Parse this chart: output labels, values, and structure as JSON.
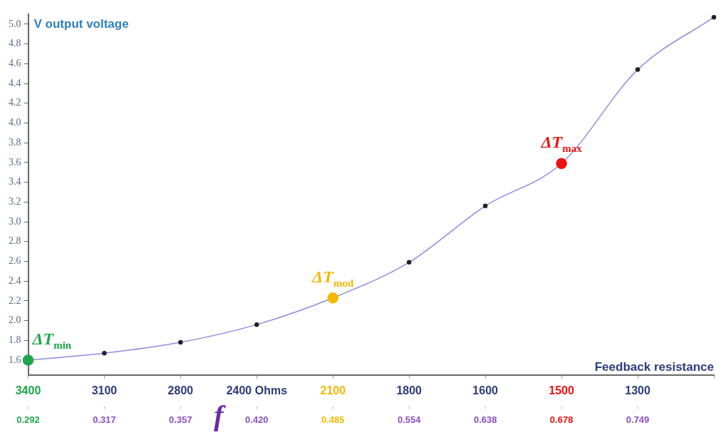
{
  "chart_data": {
    "type": "line",
    "xlabel": "Feedback resistance",
    "ylabel": "V output voltage",
    "categories": [
      "3400",
      "3100",
      "2800",
      "2400 Ohms",
      "2100",
      "1800",
      "1600",
      "1500",
      "1300",
      null
    ],
    "ylim": [
      1.45,
      5.1
    ],
    "yticks": [
      {
        "value": 1.6,
        "label": "1.6"
      },
      {
        "value": 1.8,
        "label": "1.8"
      },
      {
        "value": 2.0,
        "label": "2.0"
      },
      {
        "value": 2.2,
        "label": "2.2"
      },
      {
        "value": 2.4,
        "label": "2.4"
      },
      {
        "value": 2.6,
        "label": "2.6"
      },
      {
        "value": 2.8,
        "label": "2.8"
      },
      {
        "value": 3.0,
        "label": "3.0"
      },
      {
        "value": 3.2,
        "label": "3.2"
      },
      {
        "value": 3.4,
        "label": "3.4"
      },
      {
        "value": 3.6,
        "label": "3.6"
      },
      {
        "value": 3.8,
        "label": "3.8"
      },
      {
        "value": 4.0,
        "label": "4.0"
      },
      {
        "value": 4.2,
        "label": "4.2"
      },
      {
        "value": 4.4,
        "label": "4.4"
      },
      {
        "value": 4.6,
        "label": "4.6"
      },
      {
        "value": 4.8,
        "label": "4.8"
      },
      {
        "value": 5.0,
        "label": "5.0"
      }
    ],
    "series": [
      {
        "color": "#8c8ce0",
        "values": [
          1.6,
          1.67,
          1.78,
          1.96,
          2.23,
          2.59,
          3.16,
          3.59,
          4.54,
          5.07
        ],
        "colors": [
          "#1fa64a",
          "#222222",
          "#222222",
          "#222222",
          "#f5b800",
          "#222222",
          "#222222",
          "#ee1111",
          "#222222",
          "#222222"
        ]
      }
    ],
    "marker": "circle",
    "line_style": "solid",
    "grid": false,
    "annotations": [
      {
        "text": "ΔT$_{min}$",
        "x": "3400",
        "y": 1.6
      },
      {
        "text": "ΔT$_{mod}$",
        "x": "2100",
        "y": 2.23
      },
      {
        "text": "ΔT$_{max}$",
        "x": "1500",
        "y": 3.59
      },
      "0.292",
      "0.317",
      "0.357",
      "0.420",
      "0.485",
      "0.554",
      "0.638",
      "0.678",
      "0.749",
      "f"
    ]
  }
}
